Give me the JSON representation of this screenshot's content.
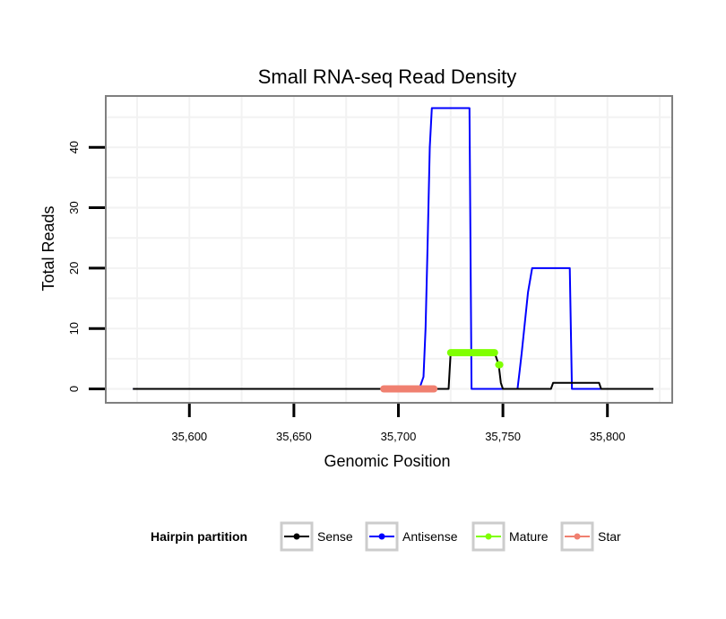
{
  "chart_data": {
    "type": "line",
    "title": "Small RNA-seq Read Density",
    "xlabel": "Genomic Position",
    "ylabel": "Total Reads",
    "xlim": [
      35560,
      35831
    ],
    "ylim": [
      -2.3,
      48.5
    ],
    "x_ticks": [
      35600,
      35650,
      35700,
      35750,
      35800
    ],
    "x_tick_labels": [
      "35,600",
      "35,650",
      "35,700",
      "35,750",
      "35,800"
    ],
    "y_ticks": [
      0,
      10,
      20,
      30,
      40
    ],
    "y_tick_labels": [
      "0",
      "10",
      "20",
      "30",
      "40"
    ],
    "grid": true,
    "legend": {
      "title": "Hairpin partition",
      "position": "bottom"
    },
    "series": [
      {
        "name": "Sense",
        "color": "#000000",
        "style": "line",
        "points": [
          [
            35573,
            0
          ],
          [
            35719,
            0
          ],
          [
            35724,
            0
          ],
          [
            35725,
            6
          ],
          [
            35746,
            6
          ],
          [
            35748,
            4
          ],
          [
            35749,
            1
          ],
          [
            35750,
            0
          ],
          [
            35773,
            0
          ],
          [
            35774,
            1
          ],
          [
            35796,
            1
          ],
          [
            35797,
            0
          ],
          [
            35822,
            0
          ]
        ]
      },
      {
        "name": "Antisense",
        "color": "#0000ff",
        "style": "line",
        "points": [
          [
            35573,
            0
          ],
          [
            35710,
            0
          ],
          [
            35712,
            2
          ],
          [
            35713,
            10
          ],
          [
            35714,
            24
          ],
          [
            35715,
            40
          ],
          [
            35716,
            46.5
          ],
          [
            35734,
            46.5
          ],
          [
            35735,
            0
          ],
          [
            35757,
            0
          ],
          [
            35758,
            3
          ],
          [
            35759,
            6
          ],
          [
            35762,
            16
          ],
          [
            35764,
            20
          ],
          [
            35782,
            20
          ],
          [
            35783,
            0
          ],
          [
            35822,
            0
          ]
        ]
      },
      {
        "name": "Mature",
        "color": "#7fff00",
        "style": "thick",
        "segments": [
          [
            [
              35725,
              6
            ],
            [
              35746,
              6
            ]
          ],
          [
            [
              35748,
              4
            ],
            [
              35748.5,
              4
            ]
          ]
        ]
      },
      {
        "name": "Star",
        "color": "#f08070",
        "style": "thick",
        "segments": [
          [
            [
              35693,
              0
            ],
            [
              35717,
              0
            ]
          ]
        ]
      }
    ]
  }
}
